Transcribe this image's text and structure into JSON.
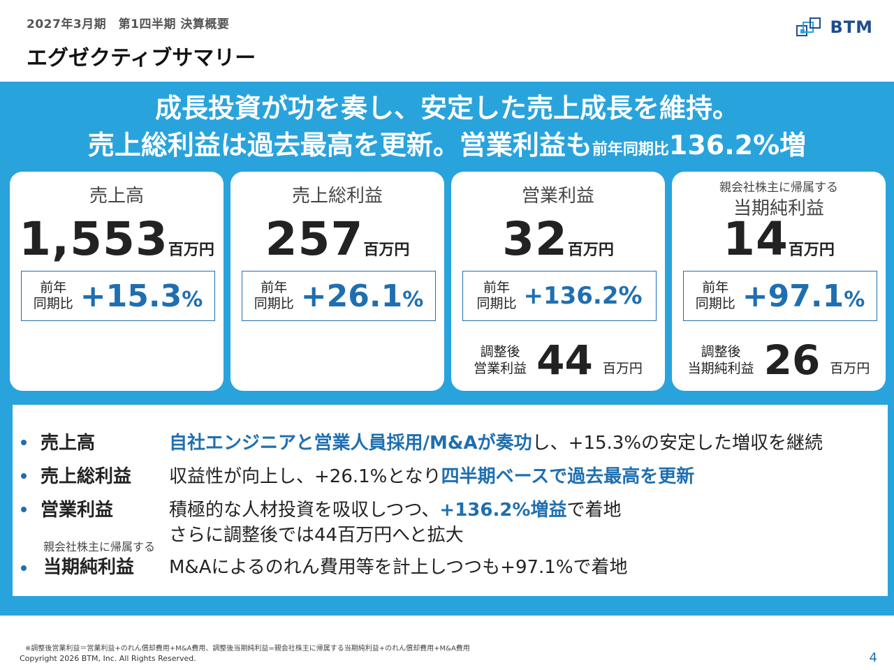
{
  "header": {
    "period": "2027年3月期　第1四半期  決算概要",
    "title": "エグゼクティブサマリー",
    "logo_text": "BTM"
  },
  "headline": {
    "line1": "成長投資が功を奏し、安定した売上成長を維持。",
    "line2_a": "売上総利益は過去最高を更新。営業利益も",
    "line2_small": "前年同期比",
    "line2_b": "136.2%増"
  },
  "cards": {
    "sales": {
      "label": "売上高",
      "value": "1,553",
      "unit": "百万円",
      "yoy_label_1": "前年",
      "yoy_label_2": "同期比",
      "yoy_value": "+15.3",
      "yoy_pct": "%"
    },
    "gross": {
      "label": "売上総利益",
      "value": "257",
      "unit": "百万円",
      "yoy_label_1": "前年",
      "yoy_label_2": "同期比",
      "yoy_value": "+26.1",
      "yoy_pct": "%"
    },
    "operating": {
      "label": "営業利益",
      "value": "32",
      "unit": "百万円",
      "yoy_label_1": "前年",
      "yoy_label_2": "同期比",
      "yoy_value": "+136.2%",
      "adj_label_1": "調整後",
      "adj_label_2": "営業利益",
      "adj_value": "44",
      "adj_unit": "百万円"
    },
    "net": {
      "label_sub": "親会社株主に帰属する",
      "label": "当期純利益",
      "value": "14",
      "unit": "百万円",
      "yoy_label_1": "前年",
      "yoy_label_2": "同期比",
      "yoy_value": "+97.1",
      "yoy_pct": "%",
      "adj_label_1": "調整後",
      "adj_label_2": "当期純利益",
      "adj_value": "26",
      "adj_unit": "百万円"
    }
  },
  "summary": {
    "sales": {
      "label": "売上高",
      "hl": "自社エンジニアと営業人員採用/M&Aが奏功",
      "rest": "し、+15.3%の安定した増収を継続"
    },
    "gross": {
      "label": "売上総利益",
      "pre": "収益性が向上し、+26.1%となり",
      "hl": "四半期ベースで過去最高を更新"
    },
    "operating": {
      "label": "営業利益",
      "pre": "積極的な人材投資を吸収しつつ、",
      "hl": "+136.2%増益",
      "post": "で着地",
      "line2": "さらに調整後では44百万円へと拡大"
    },
    "net": {
      "label_sub": "親会社株主に帰属する",
      "label": "当期純利益",
      "text": "M&Aによるのれん費用等を計上しつつも+97.1%で着地"
    }
  },
  "footer": {
    "footnote": "※調整後営業利益＝営業利益+のれん償却費用+M&A費用、調整後当期純利益=親会社株主に帰属する当期純利益+のれん償却費用+M&A費用",
    "copyright": "Copyright 2026 BTM, Inc. All Rights Reserved.",
    "page": "4"
  },
  "colors": {
    "accent_blue": "#1f6fb0",
    "band_blue": "#29a3dc"
  }
}
